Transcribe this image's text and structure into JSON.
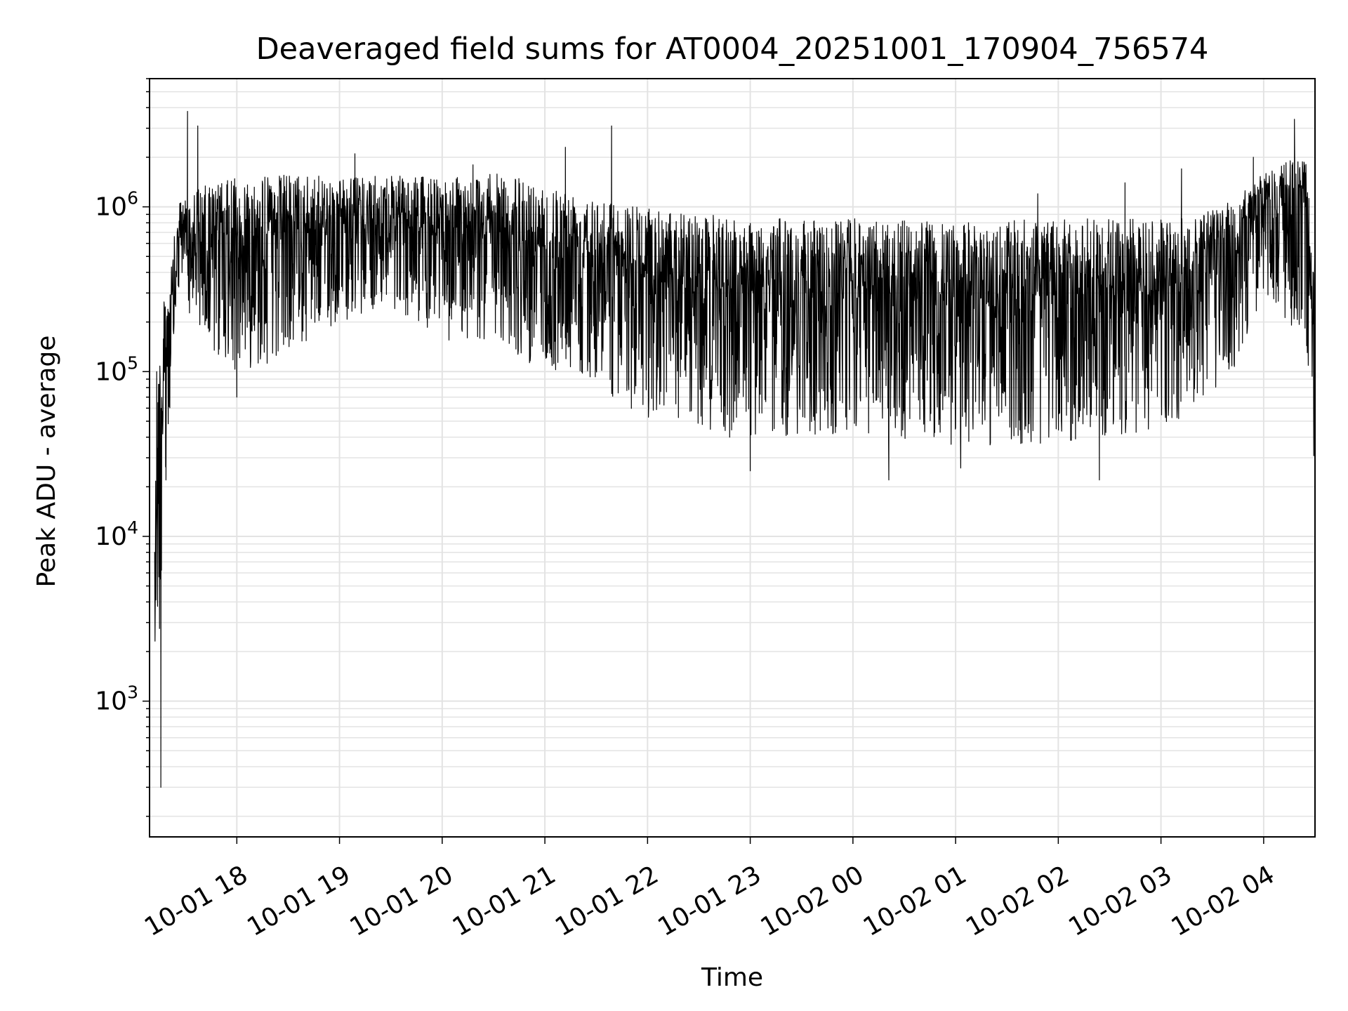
{
  "chart_data": {
    "type": "line",
    "title": "Deaveraged field sums for AT0004_20251001_170904_756574",
    "xlabel": "Time",
    "ylabel": "Peak ADU - average",
    "yscale": "log",
    "ylim": [
      150,
      6000000
    ],
    "xlim_hours": [
      17.15,
      28.5
    ],
    "grid": true,
    "line_color": "#000000",
    "grid_color": "#e3e3e3",
    "x_ticks": [
      {
        "h": 18,
        "label": "10-01 18"
      },
      {
        "h": 19,
        "label": "10-01 19"
      },
      {
        "h": 20,
        "label": "10-01 20"
      },
      {
        "h": 21,
        "label": "10-01 21"
      },
      {
        "h": 22,
        "label": "10-01 22"
      },
      {
        "h": 23,
        "label": "10-01 23"
      },
      {
        "h": 24,
        "label": "10-02 00"
      },
      {
        "h": 25,
        "label": "10-02 01"
      },
      {
        "h": 26,
        "label": "10-02 02"
      },
      {
        "h": 27,
        "label": "10-02 03"
      },
      {
        "h": 28,
        "label": "10-02 04"
      }
    ],
    "y_ticks": [
      {
        "value": 1000,
        "base": "10",
        "exp": "3"
      },
      {
        "value": 10000,
        "base": "10",
        "exp": "4"
      },
      {
        "value": 100000,
        "base": "10",
        "exp": "5"
      },
      {
        "value": 1000000,
        "base": "10",
        "exp": "6"
      }
    ],
    "envelope": {
      "note": "Dense signal approximated by upper/lower envelopes (hours, ADU)",
      "upper": [
        [
          17.2,
          100000
        ],
        [
          17.3,
          300000
        ],
        [
          17.45,
          1100000
        ],
        [
          17.6,
          1300000
        ],
        [
          18.0,
          1500000
        ],
        [
          18.5,
          1600000
        ],
        [
          19.0,
          1500000
        ],
        [
          19.5,
          1550000
        ],
        [
          20.0,
          1500000
        ],
        [
          20.5,
          1600000
        ],
        [
          21.0,
          1400000
        ],
        [
          21.6,
          1150000
        ],
        [
          21.7,
          1050000
        ],
        [
          22.2,
          950000
        ],
        [
          23.0,
          850000
        ],
        [
          24.0,
          850000
        ],
        [
          25.0,
          800000
        ],
        [
          26.0,
          850000
        ],
        [
          27.0,
          850000
        ],
        [
          27.6,
          1000000
        ],
        [
          28.0,
          1600000
        ],
        [
          28.4,
          2200000
        ],
        [
          28.5,
          500000
        ]
      ],
      "lower": [
        [
          17.2,
          400
        ],
        [
          17.3,
          15000
        ],
        [
          17.45,
          400000
        ],
        [
          17.6,
          150000
        ],
        [
          18.0,
          100000
        ],
        [
          18.5,
          120000
        ],
        [
          19.0,
          200000
        ],
        [
          19.5,
          250000
        ],
        [
          20.0,
          150000
        ],
        [
          20.5,
          150000
        ],
        [
          21.0,
          100000
        ],
        [
          21.6,
          90000
        ],
        [
          21.7,
          60000
        ],
        [
          22.2,
          45000
        ],
        [
          23.0,
          40000
        ],
        [
          24.0,
          40000
        ],
        [
          25.0,
          35000
        ],
        [
          26.0,
          35000
        ],
        [
          27.0,
          45000
        ],
        [
          27.6,
          70000
        ],
        [
          28.0,
          300000
        ],
        [
          28.4,
          150000
        ],
        [
          28.5,
          20000
        ]
      ]
    },
    "spikes": [
      [
        17.22,
        100000
      ],
      [
        17.26,
        300
      ],
      [
        17.31,
        22000
      ],
      [
        17.52,
        3800000
      ],
      [
        17.62,
        3100000
      ],
      [
        18.0,
        70000
      ],
      [
        19.15,
        2100000
      ],
      [
        20.3,
        1800000
      ],
      [
        21.2,
        2300000
      ],
      [
        21.65,
        3100000
      ],
      [
        22.8,
        40000
      ],
      [
        23.0,
        25000
      ],
      [
        24.35,
        22000
      ],
      [
        25.05,
        26000
      ],
      [
        25.8,
        1200000
      ],
      [
        26.4,
        22000
      ],
      [
        26.65,
        1400000
      ],
      [
        27.2,
        1700000
      ],
      [
        27.9,
        2000000
      ],
      [
        28.3,
        3400000
      ],
      [
        28.5,
        16000
      ]
    ]
  }
}
